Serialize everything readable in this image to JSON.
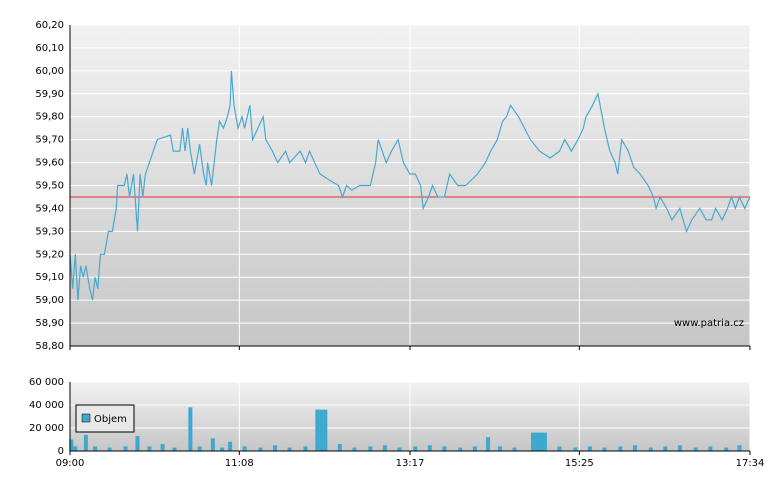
{
  "chart_data": [
    {
      "type": "line",
      "annotation": "www.patria.cz",
      "xlim": [
        540,
        1054
      ],
      "ylim": [
        58.8,
        60.2
      ],
      "yticks": [
        {
          "value": 58.8,
          "label": "58,80"
        },
        {
          "value": 58.9,
          "label": "58,90"
        },
        {
          "value": 59.0,
          "label": "59,00"
        },
        {
          "value": 59.1,
          "label": "59,10"
        },
        {
          "value": 59.2,
          "label": "59,20"
        },
        {
          "value": 59.3,
          "label": "59,30"
        },
        {
          "value": 59.4,
          "label": "59,40"
        },
        {
          "value": 59.5,
          "label": "59,50"
        },
        {
          "value": 59.6,
          "label": "59,60"
        },
        {
          "value": 59.7,
          "label": "59,70"
        },
        {
          "value": 59.8,
          "label": "59,80"
        },
        {
          "value": 59.9,
          "label": "59,90"
        },
        {
          "value": 60.0,
          "label": "60,00"
        },
        {
          "value": 60.1,
          "label": "60,10"
        },
        {
          "value": 60.2,
          "label": "60,20"
        }
      ],
      "grid": true,
      "reference_line": {
        "value": 59.45,
        "color": "#e03030"
      },
      "x": [
        540,
        542,
        544,
        546,
        548,
        550,
        552,
        555,
        557,
        559,
        561,
        563,
        566,
        569,
        572,
        575,
        576,
        581,
        583,
        585,
        588,
        591,
        593,
        595,
        597,
        600,
        603,
        606,
        616,
        618,
        623,
        625,
        627,
        629,
        631,
        634,
        638,
        641,
        643,
        644,
        647,
        649,
        651,
        653,
        656,
        659,
        661,
        662,
        664,
        667,
        670,
        672,
        676,
        678,
        682,
        686,
        688,
        693,
        697,
        703,
        706,
        714,
        718,
        721,
        725,
        729,
        737,
        743,
        746,
        749,
        753,
        759,
        767,
        771,
        773,
        776,
        779,
        783,
        788,
        792,
        797,
        801,
        805,
        807,
        811,
        814,
        818,
        823,
        827,
        833,
        839,
        848,
        854,
        858,
        863,
        867,
        870,
        873,
        879,
        888,
        895,
        903,
        910,
        914,
        919,
        924,
        928,
        930,
        935,
        939,
        944,
        948,
        952,
        954,
        957,
        962,
        966,
        971,
        977,
        981,
        983,
        986,
        991,
        995,
        1001,
        1006,
        1010,
        1016,
        1021,
        1025,
        1028,
        1033,
        1037,
        1040,
        1043,
        1046,
        1050,
        1054
      ],
      "series": [
        {
          "color": "#4aa8d0",
          "values": [
            59.2,
            59.05,
            59.2,
            59.0,
            59.15,
            59.1,
            59.15,
            59.05,
            59.0,
            59.1,
            59.05,
            59.2,
            59.2,
            59.3,
            59.3,
            59.4,
            59.5,
            59.5,
            59.55,
            59.45,
            59.55,
            59.3,
            59.55,
            59.45,
            59.55,
            59.6,
            59.65,
            59.7,
            59.72,
            59.65,
            59.65,
            59.75,
            59.65,
            59.75,
            59.65,
            59.55,
            59.68,
            59.55,
            59.5,
            59.6,
            59.5,
            59.6,
            59.7,
            59.78,
            59.75,
            59.8,
            59.85,
            60.0,
            59.85,
            59.75,
            59.8,
            59.75,
            59.85,
            59.7,
            59.75,
            59.8,
            59.7,
            59.65,
            59.6,
            59.65,
            59.6,
            59.65,
            59.6,
            59.65,
            59.6,
            59.55,
            59.52,
            59.5,
            59.45,
            59.5,
            59.48,
            59.5,
            59.5,
            59.6,
            59.7,
            59.65,
            59.6,
            59.65,
            59.7,
            59.6,
            59.55,
            59.55,
            59.5,
            59.4,
            59.45,
            59.5,
            59.45,
            59.45,
            59.55,
            59.5,
            59.5,
            59.55,
            59.6,
            59.65,
            59.7,
            59.78,
            59.8,
            59.85,
            59.8,
            59.7,
            59.65,
            59.62,
            59.65,
            59.7,
            59.65,
            59.7,
            59.75,
            59.8,
            59.85,
            59.9,
            59.75,
            59.65,
            59.6,
            59.55,
            59.7,
            59.65,
            59.58,
            59.55,
            59.5,
            59.45,
            59.4,
            59.45,
            59.4,
            59.35,
            59.4,
            59.3,
            59.35,
            59.4,
            59.35,
            59.35,
            59.4,
            59.35,
            59.4,
            59.45,
            59.4,
            59.45,
            59.4,
            59.45
          ]
        }
      ]
    },
    {
      "type": "bar",
      "xlim": [
        540,
        1054
      ],
      "xticks": [
        {
          "value": 540,
          "label": "09:00"
        },
        {
          "value": 668,
          "label": "11:08"
        },
        {
          "value": 797,
          "label": "13:17"
        },
        {
          "value": 925,
          "label": "15:25"
        },
        {
          "value": 1054,
          "label": "17:34"
        }
      ],
      "ylim": [
        0,
        60000
      ],
      "yticks": [
        0,
        {
          "value": 20000,
          "label": "20 000"
        },
        {
          "value": 40000,
          "label": "40 000"
        },
        {
          "value": 60000,
          "label": "60 000"
        }
      ],
      "grid": true,
      "x": [
        541,
        544,
        552,
        559,
        570,
        582,
        591,
        600,
        610,
        619,
        631,
        638,
        648,
        655,
        661,
        672,
        684,
        695,
        706,
        718,
        727,
        730,
        733,
        744,
        755,
        767,
        778,
        789,
        801,
        812,
        823,
        835,
        846,
        856,
        865,
        876,
        890,
        893,
        896,
        899,
        910,
        922,
        933,
        944,
        956,
        967,
        979,
        990,
        1001,
        1013,
        1024,
        1036,
        1046
      ],
      "series": [
        {
          "name": "Objem",
          "color": "#3ea8d0",
          "values": [
            10000,
            4000,
            14000,
            4000,
            3000,
            4000,
            13000,
            4000,
            6000,
            3000,
            38000,
            4000,
            11000,
            3000,
            8000,
            4000,
            3000,
            5000,
            3000,
            4000,
            36000,
            36000,
            36000,
            6000,
            3000,
            4000,
            5000,
            3000,
            4000,
            5000,
            4000,
            3000,
            4000,
            12000,
            4000,
            3000,
            16000,
            16000,
            16000,
            16000,
            4000,
            3000,
            4000,
            3000,
            4000,
            5000,
            3000,
            4000,
            5000,
            3000,
            4000,
            3000,
            5000
          ]
        }
      ]
    }
  ]
}
